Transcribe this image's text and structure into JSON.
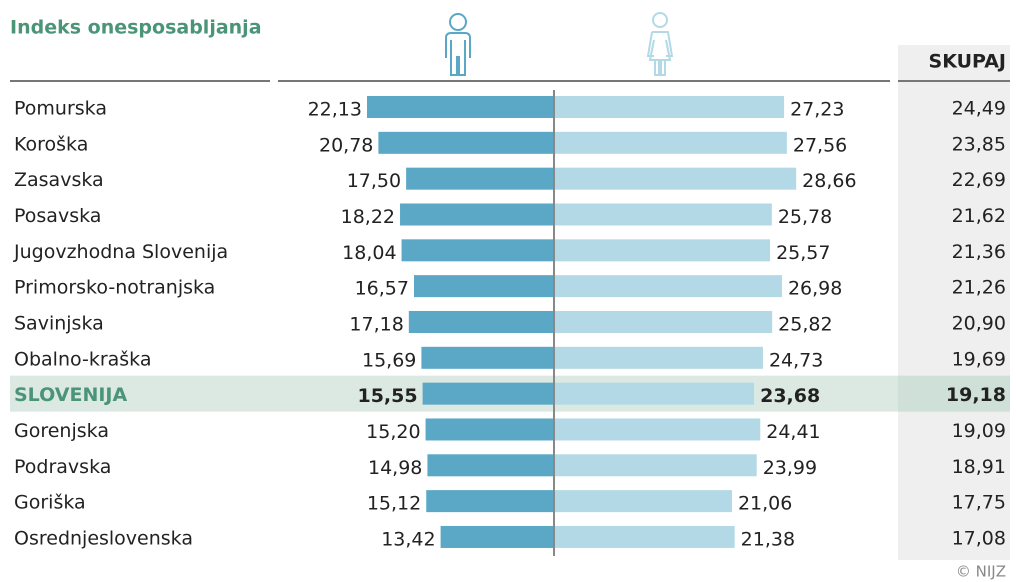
{
  "chart_data": {
    "type": "butterfly",
    "title": "Indeks onesposabljanja",
    "categories": [
      "Pomurska",
      "Koroška",
      "Zasavska",
      "Posavska",
      "Jugovzhodna Slovenija",
      "Primorsko-notranjska",
      "Savinjska",
      "Obalno-kraška",
      "SLOVENIJA",
      "Gorenjska",
      "Podravska",
      "Goriška",
      "Osrednjeslovenska"
    ],
    "highlighted_category": "SLOVENIJA",
    "series": [
      {
        "color": "#5aa7c6",
        "values": [
          22.13,
          20.78,
          17.5,
          18.22,
          18.04,
          16.57,
          17.18,
          15.69,
          15.55,
          15.2,
          14.98,
          15.12,
          13.42
        ],
        "value_labels": [
          "22,13",
          "20,78",
          "17,50",
          "18,22",
          "18,04",
          "16,57",
          "17,18",
          "15,69",
          "15,55",
          "15,20",
          "14,98",
          "15,12",
          "13,42"
        ]
      },
      {
        "color": "#b3d9e6",
        "values": [
          27.23,
          27.56,
          28.66,
          25.78,
          25.57,
          26.98,
          25.82,
          24.73,
          23.68,
          24.41,
          23.99,
          21.06,
          21.38
        ],
        "value_labels": [
          "27,23",
          "27,56",
          "28,66",
          "25,78",
          "25,57",
          "26,98",
          "25,82",
          "24,73",
          "23,68",
          "24,41",
          "23,99",
          "21,06",
          "21,38"
        ]
      },
      {
        "name": "SKUPAJ",
        "values": [
          24.49,
          23.85,
          22.69,
          21.62,
          21.36,
          21.26,
          20.9,
          19.69,
          19.18,
          19.09,
          18.91,
          17.75,
          17.08
        ],
        "value_labels": [
          "24,49",
          "23,85",
          "22,69",
          "21,62",
          "21,36",
          "21,26",
          "20,90",
          "19,69",
          "19,18",
          "19,09",
          "18,91",
          "17,75",
          "17,08"
        ]
      }
    ],
    "source": "© NIJZ"
  }
}
